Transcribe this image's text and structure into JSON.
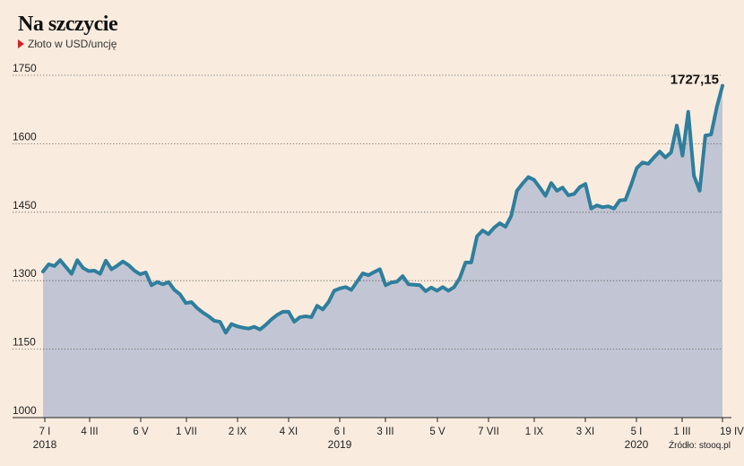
{
  "title": "Na szczycie",
  "subtitle": "Złoto w USD/uncję",
  "source": "Źródło: stooq.pl",
  "colors": {
    "background": "#f9ecdf",
    "line": "#2f7e9c",
    "area": "#c2c6d4",
    "accent": "#d4202a"
  },
  "chart_data": {
    "type": "area",
    "ylim": [
      1000,
      1750
    ],
    "yticks": [
      1000,
      1150,
      1300,
      1450,
      1600,
      1750
    ],
    "grid": "horizontal dotted",
    "xticks": [
      "7 I",
      "4 III",
      "6 V",
      "1 VII",
      "2 IX",
      "4 XI",
      "6 I",
      "3 III",
      "5 V",
      "7 VII",
      "1 IX",
      "3 XI",
      "5 I",
      "1 III",
      "19 IV"
    ],
    "years": [
      "2018",
      "2019",
      "2020"
    ],
    "last_value_label": "1727,15",
    "series": [
      {
        "values": [
          1320,
          1336,
          1332,
          1345,
          1330,
          1315,
          1345,
          1328,
          1321,
          1322,
          1315,
          1344,
          1325,
          1333,
          1342,
          1334,
          1322,
          1314,
          1318,
          1290,
          1297,
          1292,
          1297,
          1280,
          1270,
          1251,
          1253,
          1240,
          1230,
          1222,
          1212,
          1210,
          1186,
          1205,
          1200,
          1197,
          1195,
          1199,
          1193,
          1203,
          1215,
          1225,
          1232,
          1232,
          1210,
          1220,
          1222,
          1220,
          1245,
          1237,
          1253,
          1278,
          1283,
          1286,
          1280,
          1298,
          1316,
          1312,
          1319,
          1325,
          1290,
          1296,
          1298,
          1310,
          1292,
          1291,
          1290,
          1277,
          1285,
          1278,
          1286,
          1278,
          1286,
          1306,
          1340,
          1340,
          1397,
          1410,
          1402,
          1416,
          1426,
          1418,
          1442,
          1497,
          1513,
          1527,
          1521,
          1504,
          1486,
          1514,
          1497,
          1504,
          1487,
          1490,
          1505,
          1512,
          1458,
          1465,
          1461,
          1463,
          1458,
          1476,
          1477,
          1510,
          1547,
          1559,
          1556,
          1570,
          1583,
          1570,
          1581,
          1640,
          1574,
          1670,
          1530,
          1497,
          1618,
          1620,
          1680,
          1727.15
        ]
      }
    ]
  }
}
